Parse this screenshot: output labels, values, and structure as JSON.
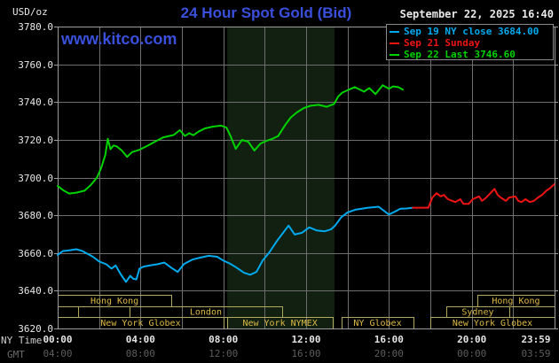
{
  "header": {
    "unit_label": "USD/oz",
    "title": "24 Hour Spot Gold (Bid)",
    "watermark": "www.kitco.com",
    "datetime": "September 22, 2025 16:40"
  },
  "legend": {
    "items": [
      {
        "label": "Sep 19 NY close 3684.00",
        "color": "#00aaef"
      },
      {
        "label": "Sep 21 Sunday",
        "color": "#ef1414"
      },
      {
        "label": "Sep 22 Last 3746.60",
        "color": "#00d300"
      }
    ]
  },
  "axes": {
    "ny_caption": "NY Time",
    "gmt_caption": "GMT",
    "y_ticks": [
      "3780.0",
      "3760.0",
      "3740.0",
      "3720.0",
      "3700.0",
      "3680.0",
      "3660.0",
      "3640.0",
      "3620.0"
    ],
    "ny_ticks": [
      "00:00",
      "04:00",
      "08:00",
      "12:00",
      "16:00",
      "20:00",
      "23:59"
    ],
    "gmt_ticks": [
      "04:00",
      "08:00",
      "12:00",
      "16:00",
      "20:00",
      "00:00",
      "03:59"
    ]
  },
  "sessions": [
    {
      "row": 0,
      "start_hour": 0,
      "end_hour": 5.49,
      "label": "Hong Kong"
    },
    {
      "row": 0,
      "start_hour": 20.27,
      "end_hour": 24,
      "label": "Hong Kong"
    },
    {
      "row": 1,
      "start_hour": 0,
      "end_hour": 0.99,
      "label": ""
    },
    {
      "row": 1,
      "start_hour": 0.99,
      "end_hour": 3.47,
      "label": ""
    },
    {
      "row": 1,
      "start_hour": 3.47,
      "end_hour": 10.84,
      "label": "London"
    },
    {
      "row": 1,
      "start_hour": 18.77,
      "end_hour": 21.81,
      "label": "Sydney"
    },
    {
      "row": 1,
      "start_hour": 21.81,
      "end_hour": 24,
      "label": ""
    },
    {
      "row": 2,
      "start_hour": 0,
      "end_hour": 8.01,
      "label": "New York Globex"
    },
    {
      "row": 2,
      "start_hour": 8.19,
      "end_hour": 13.29,
      "label": "New York NYMEX"
    },
    {
      "row": 2,
      "start_hour": 13.71,
      "end_hour": 17.19,
      "label": "NY Globex"
    },
    {
      "row": 2,
      "start_hour": 18.0,
      "end_hour": 24,
      "label": "New York Globex"
    }
  ],
  "chart_data": {
    "type": "line",
    "title": "24 Hour Spot Gold (Bid)",
    "x_axis": {
      "unit": "hour NY time",
      "range": [
        0,
        24
      ],
      "gridline_step_hours": 2,
      "label_step_hours": 4
    },
    "y_axis": {
      "unit": "USD/oz",
      "range": [
        3620,
        3780
      ],
      "gridline_step": 20
    },
    "grid": true,
    "legend_position": "top-right",
    "nymex_band_hours": [
      8.19,
      13.37
    ],
    "series": [
      {
        "name": "Sep 19 NY close 3684.00",
        "color": "#00aaef",
        "points": [
          [
            0,
            3659
          ],
          [
            0.25,
            3661
          ],
          [
            0.6,
            3661.5
          ],
          [
            0.9,
            3662
          ],
          [
            1.2,
            3661
          ],
          [
            1.45,
            3659.5
          ],
          [
            1.7,
            3658
          ],
          [
            2.0,
            3655.5
          ],
          [
            2.35,
            3654
          ],
          [
            2.6,
            3651.7
          ],
          [
            2.8,
            3653.4
          ],
          [
            3.05,
            3648.6
          ],
          [
            3.3,
            3644.7
          ],
          [
            3.5,
            3647.9
          ],
          [
            3.65,
            3646.3
          ],
          [
            3.8,
            3646
          ],
          [
            3.95,
            3651.7
          ],
          [
            4.15,
            3652.8
          ],
          [
            4.5,
            3653.5
          ],
          [
            4.8,
            3654
          ],
          [
            5.15,
            3654.9
          ],
          [
            5.55,
            3651.7
          ],
          [
            5.8,
            3650
          ],
          [
            6.1,
            3654.1
          ],
          [
            6.5,
            3656.5
          ],
          [
            6.9,
            3657.6
          ],
          [
            7.3,
            3658.5
          ],
          [
            7.7,
            3658
          ],
          [
            8.0,
            3656
          ],
          [
            8.3,
            3654.5
          ],
          [
            8.6,
            3652.5
          ],
          [
            9.0,
            3649.5
          ],
          [
            9.3,
            3648.5
          ],
          [
            9.6,
            3650
          ],
          [
            9.9,
            3656
          ],
          [
            10.2,
            3660
          ],
          [
            10.6,
            3666.5
          ],
          [
            11.15,
            3674.5
          ],
          [
            11.45,
            3669.8
          ],
          [
            11.8,
            3670.7
          ],
          [
            12.15,
            3673.6
          ],
          [
            12.5,
            3672
          ],
          [
            12.9,
            3671.5
          ],
          [
            13.2,
            3672.5
          ],
          [
            13.4,
            3674.5
          ],
          [
            13.7,
            3679
          ],
          [
            14.0,
            3681.5
          ],
          [
            14.4,
            3683
          ],
          [
            15.0,
            3684
          ],
          [
            15.5,
            3684.5
          ],
          [
            16.0,
            3680.4
          ],
          [
            16.3,
            3682
          ],
          [
            16.55,
            3683.5
          ],
          [
            16.85,
            3683.6
          ],
          [
            17.15,
            3684
          ]
        ]
      },
      {
        "name": "Sep 21 Sunday",
        "color": "#ef1414",
        "points": [
          [
            17.15,
            3684
          ],
          [
            17.9,
            3684
          ],
          [
            18.1,
            3689.4
          ],
          [
            18.3,
            3691.7
          ],
          [
            18.5,
            3690
          ],
          [
            18.65,
            3690.8
          ],
          [
            18.85,
            3688.5
          ],
          [
            19.2,
            3687
          ],
          [
            19.45,
            3688.5
          ],
          [
            19.6,
            3686
          ],
          [
            19.85,
            3686
          ],
          [
            20.05,
            3688.5
          ],
          [
            20.35,
            3690
          ],
          [
            20.5,
            3687.6
          ],
          [
            20.7,
            3689.4
          ],
          [
            20.9,
            3691.7
          ],
          [
            21.1,
            3694
          ],
          [
            21.25,
            3690.8
          ],
          [
            21.4,
            3689.4
          ],
          [
            21.65,
            3687.6
          ],
          [
            21.8,
            3689.4
          ],
          [
            22.1,
            3690
          ],
          [
            22.25,
            3687.6
          ],
          [
            22.4,
            3687
          ],
          [
            22.6,
            3688.5
          ],
          [
            22.8,
            3687
          ],
          [
            23.0,
            3687.6
          ],
          [
            23.2,
            3689.4
          ],
          [
            23.4,
            3690.8
          ],
          [
            23.6,
            3693
          ],
          [
            23.8,
            3694.5
          ],
          [
            23.98,
            3696.4
          ]
        ]
      },
      {
        "name": "Sep 22 Last 3746.60",
        "color": "#00d300",
        "points": [
          [
            0,
            3695.5
          ],
          [
            0.3,
            3693
          ],
          [
            0.56,
            3691.5
          ],
          [
            0.9,
            3692
          ],
          [
            1.3,
            3693
          ],
          [
            1.6,
            3696
          ],
          [
            1.9,
            3700
          ],
          [
            2.1,
            3705
          ],
          [
            2.3,
            3712
          ],
          [
            2.42,
            3720.5
          ],
          [
            2.55,
            3715
          ],
          [
            2.7,
            3717
          ],
          [
            2.85,
            3716.5
          ],
          [
            3.1,
            3714.3
          ],
          [
            3.35,
            3711
          ],
          [
            3.6,
            3713.5
          ],
          [
            3.9,
            3714.5
          ],
          [
            4.3,
            3716.6
          ],
          [
            4.7,
            3719
          ],
          [
            5.1,
            3721.3
          ],
          [
            5.6,
            3722.5
          ],
          [
            5.9,
            3725.1
          ],
          [
            6.15,
            3722
          ],
          [
            6.35,
            3723.5
          ],
          [
            6.55,
            3722.4
          ],
          [
            6.8,
            3724.3
          ],
          [
            7.1,
            3726
          ],
          [
            7.5,
            3727
          ],
          [
            7.9,
            3727.5
          ],
          [
            8.15,
            3726.5
          ],
          [
            8.35,
            3722
          ],
          [
            8.6,
            3715.2
          ],
          [
            8.9,
            3719.9
          ],
          [
            9.2,
            3719
          ],
          [
            9.5,
            3714.3
          ],
          [
            9.8,
            3718
          ],
          [
            10.1,
            3719.5
          ],
          [
            10.35,
            3720.4
          ],
          [
            10.65,
            3722
          ],
          [
            11.0,
            3728
          ],
          [
            11.25,
            3731.7
          ],
          [
            11.55,
            3734.5
          ],
          [
            11.9,
            3736.9
          ],
          [
            12.2,
            3738
          ],
          [
            12.6,
            3738.5
          ],
          [
            13.0,
            3737.5
          ],
          [
            13.35,
            3739
          ],
          [
            13.55,
            3743
          ],
          [
            13.75,
            3745
          ],
          [
            14.05,
            3746.5
          ],
          [
            14.35,
            3747.9
          ],
          [
            14.8,
            3745.5
          ],
          [
            15.05,
            3747.4
          ],
          [
            15.35,
            3744.2
          ],
          [
            15.7,
            3748.9
          ],
          [
            16.0,
            3747
          ],
          [
            16.2,
            3748.3
          ],
          [
            16.45,
            3747.9
          ],
          [
            16.67,
            3746.6
          ]
        ]
      }
    ]
  }
}
